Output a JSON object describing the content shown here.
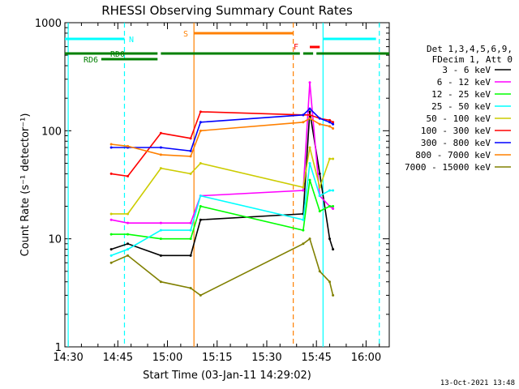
{
  "chart_data": {
    "type": "line",
    "title": "RHESSI Observing Summary Count Rates",
    "xlabel": "Start Time (03-Jan-11 14:29:02)",
    "ylabel": "Count Rate (s⁻¹ detector⁻¹)",
    "xlim": [
      "14:29",
      "16:07"
    ],
    "ylim": [
      1,
      1000
    ],
    "y_scale": "log",
    "x_ticks": [
      "14:30",
      "14:45",
      "15:00",
      "15:15",
      "15:30",
      "15:45",
      "16:00"
    ],
    "y_ticks": [
      "1",
      "10",
      "100",
      "1000"
    ],
    "legend_position": "right",
    "legend_header": [
      "Det 1,3,4,5,6,9,",
      "FDecim 1, Att 0"
    ],
    "timestamp": "13-Oct-2021 13:48",
    "series": [
      {
        "name": "3 - 6 keV",
        "color": "#000000",
        "x": [
          "14:43",
          "14:48",
          "14:58",
          "15:07",
          "15:10",
          "15:41",
          "15:43",
          "15:46",
          "15:49",
          "15:50"
        ],
        "y": [
          8,
          9,
          7,
          7,
          15,
          17,
          150,
          40,
          10,
          8
        ]
      },
      {
        "name": "6 - 12 keV",
        "color": "#ff00ff",
        "x": [
          "14:43",
          "14:48",
          "14:58",
          "15:07",
          "15:10",
          "15:41",
          "15:43",
          "15:46",
          "15:49",
          "15:50"
        ],
        "y": [
          15,
          14,
          14,
          14,
          25,
          28,
          280,
          25,
          20,
          19
        ]
      },
      {
        "name": "12 - 25 keV",
        "color": "#00ff00",
        "x": [
          "14:43",
          "14:48",
          "14:58",
          "15:07",
          "15:10",
          "15:41",
          "15:43",
          "15:46",
          "15:49",
          "15:50"
        ],
        "y": [
          11,
          11,
          10,
          10,
          20,
          12,
          35,
          18,
          20,
          20
        ]
      },
      {
        "name": "25 - 50 keV",
        "color": "#00ffff",
        "x": [
          "14:43",
          "14:48",
          "14:58",
          "15:07",
          "15:10",
          "15:41",
          "15:43",
          "15:46",
          "15:49",
          "15:50"
        ],
        "y": [
          7,
          8,
          12,
          12,
          25,
          15,
          50,
          25,
          28,
          28
        ]
      },
      {
        "name": "50 - 100 keV",
        "color": "#cccc00",
        "x": [
          "14:43",
          "14:48",
          "14:58",
          "15:07",
          "15:10",
          "15:41",
          "15:43",
          "15:46",
          "15:49",
          "15:50"
        ],
        "y": [
          17,
          17,
          45,
          40,
          50,
          30,
          70,
          30,
          55,
          55
        ]
      },
      {
        "name": "100 - 300 keV",
        "color": "#ff0000",
        "x": [
          "14:43",
          "14:48",
          "14:58",
          "15:07",
          "15:10",
          "15:41",
          "15:43",
          "15:46",
          "15:49",
          "15:50"
        ],
        "y": [
          40,
          38,
          95,
          85,
          150,
          140,
          140,
          130,
          125,
          120
        ]
      },
      {
        "name": "300 - 800 keV",
        "color": "#0000ff",
        "x": [
          "14:43",
          "14:48",
          "14:58",
          "15:07",
          "15:10",
          "15:41",
          "15:43",
          "15:46",
          "15:49",
          "15:50"
        ],
        "y": [
          70,
          70,
          70,
          65,
          120,
          140,
          160,
          130,
          120,
          115
        ]
      },
      {
        "name": "800 - 7000 keV",
        "color": "#ff8000",
        "x": [
          "14:43",
          "14:48",
          "14:58",
          "15:07",
          "15:10",
          "15:41",
          "15:43",
          "15:46",
          "15:49",
          "15:50"
        ],
        "y": [
          75,
          72,
          60,
          58,
          100,
          120,
          130,
          115,
          110,
          105
        ]
      },
      {
        "name": "7000 - 15000 keV",
        "color": "#808000",
        "x": [
          "14:43",
          "14:48",
          "14:58",
          "15:07",
          "15:10",
          "15:41",
          "15:43",
          "15:46",
          "15:49",
          "15:50"
        ],
        "y": [
          6,
          7,
          4,
          3.5,
          3,
          9,
          10,
          5,
          4,
          3
        ]
      }
    ],
    "vertical_lines": [
      {
        "x": "14:30",
        "color": "#00ffff",
        "style": "solid"
      },
      {
        "x": "14:47",
        "color": "#00ffff",
        "style": "dashed"
      },
      {
        "x": "15:08",
        "color": "#ff8000",
        "style": "solid"
      },
      {
        "x": "15:38",
        "color": "#ff8000",
        "style": "dashed"
      },
      {
        "x": "15:47",
        "color": "#00ffff",
        "style": "solid"
      },
      {
        "x": "16:04",
        "color": "#00ffff",
        "style": "dashed"
      }
    ],
    "status_bars": [
      {
        "label": "N",
        "color": "#00ffff",
        "segments": [
          [
            "14:29",
            "14:47"
          ],
          [
            "15:47",
            "16:03"
          ]
        ]
      },
      {
        "label": "S",
        "color": "#ff8000",
        "segments": [
          [
            "15:08",
            "15:38"
          ]
        ]
      },
      {
        "label": "F",
        "color": "#ff0000",
        "segments": [
          [
            "15:43",
            "15:46"
          ]
        ]
      },
      {
        "label": "RD0",
        "color": "#008000",
        "segments": [
          [
            "14:29",
            "14:57"
          ],
          [
            "14:58",
            "15:40"
          ],
          [
            "15:41",
            "15:44"
          ],
          [
            "15:45",
            "16:07"
          ]
        ]
      },
      {
        "label": "RD6",
        "color": "#008000",
        "segments": [
          [
            "14:40",
            "14:57"
          ]
        ]
      }
    ]
  }
}
